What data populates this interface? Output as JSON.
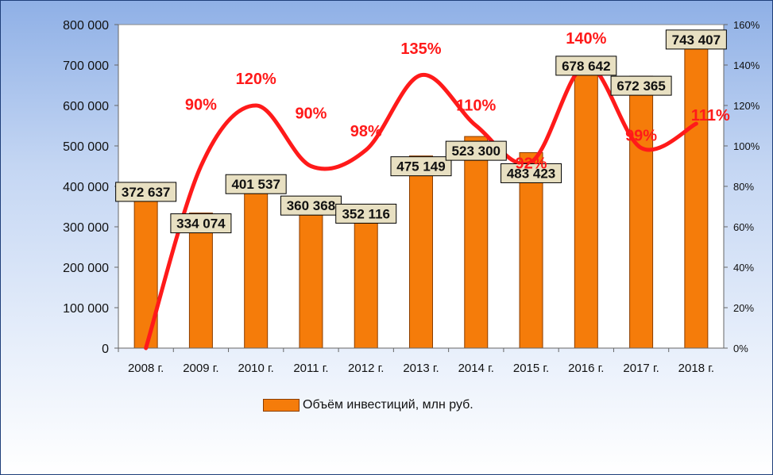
{
  "chart_data": {
    "type": "bar",
    "categories": [
      "2008 г.",
      "2009 г.",
      "2010 г.",
      "2011 г.",
      "2012 г.",
      "2013 г.",
      "2014 г.",
      "2015 г.",
      "2016 г.",
      "2017 г.",
      "2018 г."
    ],
    "series": [
      {
        "name": "Объём инвестиций, млн руб.",
        "type": "bar",
        "axis": "left",
        "color": "#f57c0a",
        "values": [
          372637,
          334074,
          401537,
          360368,
          352116,
          475149,
          523300,
          483423,
          678642,
          672365,
          743407
        ],
        "value_labels": [
          "372 637",
          "334 074",
          "401 537",
          "360 368",
          "352 116",
          "475 149",
          "523 300",
          "483 423",
          "678 642",
          "672 365",
          "743 407"
        ]
      },
      {
        "type": "line",
        "axis": "right",
        "color": "#ff1a1a",
        "values": [
          null,
          90,
          120,
          90,
          98,
          135,
          110,
          92,
          140,
          99,
          111
        ],
        "value_labels": [
          "",
          "90%",
          "120%",
          "90%",
          "98%",
          "135%",
          "110%",
          "92%",
          "140%",
          "99%",
          "111%"
        ]
      }
    ],
    "y_left": {
      "range": [
        0,
        800000
      ],
      "ticks": [
        0,
        100000,
        200000,
        300000,
        400000,
        500000,
        600000,
        700000,
        800000
      ],
      "tick_labels": [
        "0",
        "100 000",
        "200 000",
        "300 000",
        "400 000",
        "500 000",
        "600 000",
        "700 000",
        "800 000"
      ]
    },
    "y_right": {
      "range": [
        0,
        160
      ],
      "ticks": [
        0,
        20,
        40,
        60,
        80,
        100,
        120,
        140,
        160
      ],
      "tick_labels": [
        "0%",
        "20%",
        "40%",
        "60%",
        "80%",
        "100%",
        "120%",
        "140%",
        "160%"
      ]
    },
    "legend": {
      "position": "bottom",
      "label": "Объём инвестиций, млн руб."
    },
    "colors": {
      "bar": "#f57c0a",
      "bar_stroke": "#8a3d00",
      "line": "#ff1a1a",
      "value_label_bg": "#e8e0c2",
      "plot_bg": "#ffffff"
    },
    "grid": false
  }
}
